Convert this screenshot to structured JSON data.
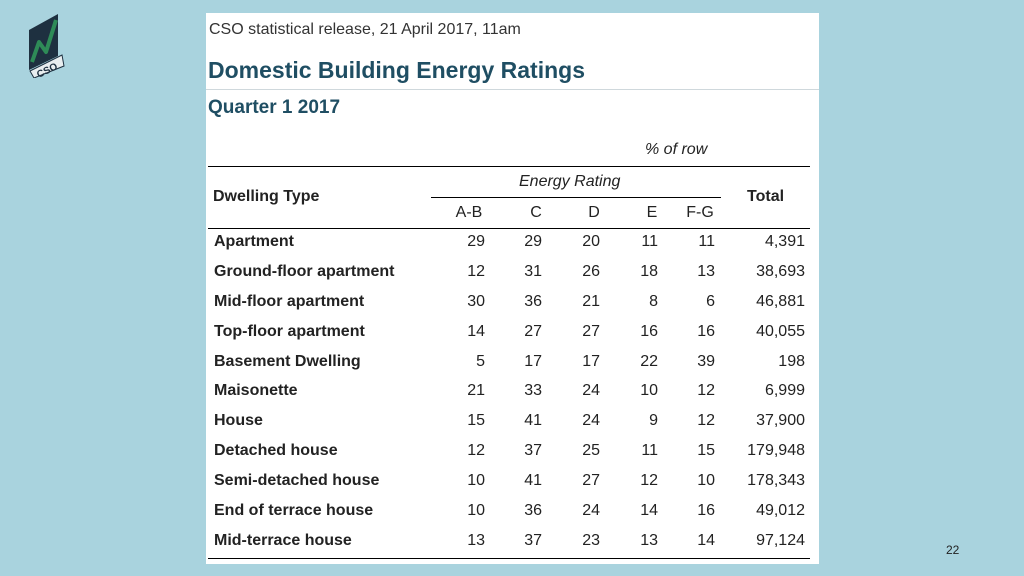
{
  "header": {
    "release": "CSO statistical release, 21 April 2017, 11am",
    "title": "Domestic Building Energy Ratings",
    "quarter": "Quarter 1 2017"
  },
  "logo": {
    "text": "CSO",
    "icon": "cso-logo-icon"
  },
  "table": {
    "unit_note": "% of row",
    "col_dwelling": "Dwelling Type",
    "group_label": "Energy Rating",
    "col_total": "Total",
    "categories": [
      "A-B",
      "C",
      "D",
      "E",
      "F-G"
    ],
    "rows": [
      {
        "name": "Apartment",
        "values": [
          "29",
          "29",
          "20",
          "11",
          "11"
        ],
        "total": "4,391"
      },
      {
        "name": "Ground-floor apartment",
        "values": [
          "12",
          "31",
          "26",
          "18",
          "13"
        ],
        "total": "38,693"
      },
      {
        "name": "Mid-floor apartment",
        "values": [
          "30",
          "36",
          "21",
          "8",
          "6"
        ],
        "total": "46,881"
      },
      {
        "name": "Top-floor apartment",
        "values": [
          "14",
          "27",
          "27",
          "16",
          "16"
        ],
        "total": "40,055"
      },
      {
        "name": "Basement Dwelling",
        "values": [
          "5",
          "17",
          "17",
          "22",
          "39"
        ],
        "total": "198"
      },
      {
        "name": "Maisonette",
        "values": [
          "21",
          "33",
          "24",
          "10",
          "12"
        ],
        "total": "6,999"
      },
      {
        "name": "House",
        "values": [
          "15",
          "41",
          "24",
          "9",
          "12"
        ],
        "total": "37,900"
      },
      {
        "name": "Detached house",
        "values": [
          "12",
          "37",
          "25",
          "11",
          "15"
        ],
        "total": "179,948"
      },
      {
        "name": "Semi-detached house",
        "values": [
          "10",
          "41",
          "27",
          "12",
          "10"
        ],
        "total": "178,343"
      },
      {
        "name": "End of terrace house",
        "values": [
          "10",
          "36",
          "24",
          "14",
          "16"
        ],
        "total": "49,012"
      },
      {
        "name": "Mid-terrace house",
        "values": [
          "13",
          "37",
          "23",
          "13",
          "14"
        ],
        "total": "97,124"
      }
    ]
  },
  "footer": {
    "slide_number": "22"
  },
  "colors": {
    "background": "#a9d3de",
    "title": "#1f4e63",
    "logo_green": "#2e8b57"
  }
}
